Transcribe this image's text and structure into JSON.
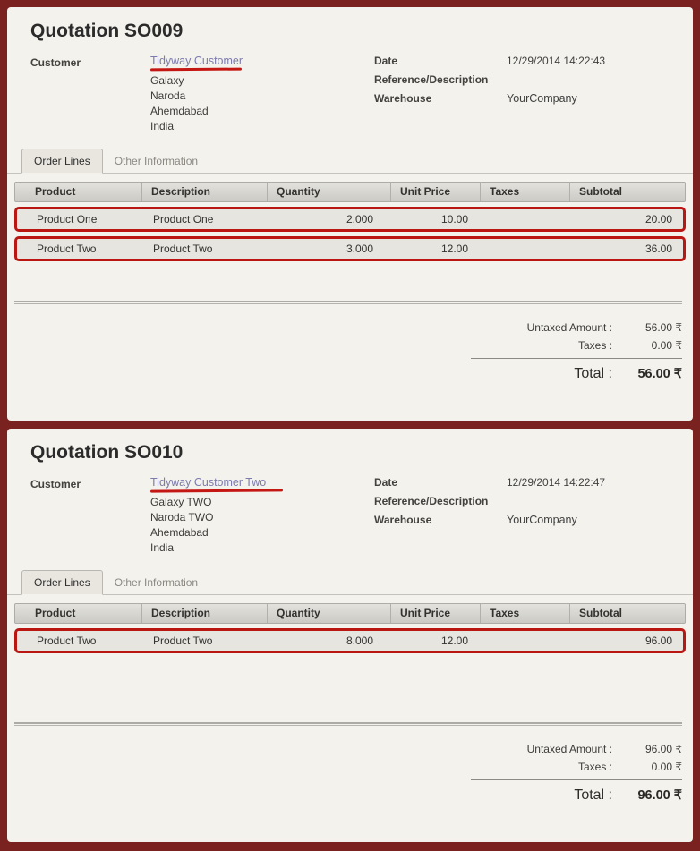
{
  "colors": {
    "frame": "#7a2220",
    "link_accent": "#7c7bad",
    "annotation_red": "#bb1712"
  },
  "quotations": [
    {
      "title": "Quotation SO009",
      "customer": {
        "label": "Customer",
        "name": "Tidyway Customer",
        "address_lines": [
          "Galaxy",
          "Naroda",
          "Ahemdabad",
          "India"
        ]
      },
      "fields": {
        "date_label": "Date",
        "date_value": "12/29/2014 14:22:43",
        "reference_label": "Reference/Description",
        "reference_value": "",
        "warehouse_label": "Warehouse",
        "warehouse_value": "YourCompany"
      },
      "tabs": [
        {
          "label": "Order Lines"
        },
        {
          "label": "Other Information"
        }
      ],
      "table": {
        "headers": [
          "Product",
          "Description",
          "Quantity",
          "Unit Price",
          "Taxes",
          "Subtotal"
        ],
        "rows": [
          {
            "product": "Product One",
            "description": "Product One",
            "quantity": "2.000",
            "unit_price": "10.00",
            "taxes": "",
            "subtotal": "20.00"
          },
          {
            "product": "Product Two",
            "description": "Product Two",
            "quantity": "3.000",
            "unit_price": "12.00",
            "taxes": "",
            "subtotal": "36.00"
          }
        ]
      },
      "totals": {
        "untaxed_label": "Untaxed Amount :",
        "untaxed_value": "56.00 ₹",
        "taxes_label": "Taxes :",
        "taxes_value": "0.00 ₹",
        "total_label": "Total :",
        "total_value": "56.00 ₹"
      }
    },
    {
      "title": "Quotation SO010",
      "customer": {
        "label": "Customer",
        "name": "Tidyway Customer Two",
        "address_lines": [
          "Galaxy TWO",
          "Naroda TWO",
          "Ahemdabad",
          "India"
        ]
      },
      "fields": {
        "date_label": "Date",
        "date_value": "12/29/2014 14:22:47",
        "reference_label": "Reference/Description",
        "reference_value": "",
        "warehouse_label": "Warehouse",
        "warehouse_value": "YourCompany"
      },
      "tabs": [
        {
          "label": "Order Lines"
        },
        {
          "label": "Other Information"
        }
      ],
      "table": {
        "headers": [
          "Product",
          "Description",
          "Quantity",
          "Unit Price",
          "Taxes",
          "Subtotal"
        ],
        "rows": [
          {
            "product": "Product Two",
            "description": "Product Two",
            "quantity": "8.000",
            "unit_price": "12.00",
            "taxes": "",
            "subtotal": "96.00"
          }
        ]
      },
      "totals": {
        "untaxed_label": "Untaxed Amount :",
        "untaxed_value": "96.00 ₹",
        "taxes_label": "Taxes :",
        "taxes_value": "0.00 ₹",
        "total_label": "Total :",
        "total_value": "96.00 ₹"
      }
    }
  ]
}
